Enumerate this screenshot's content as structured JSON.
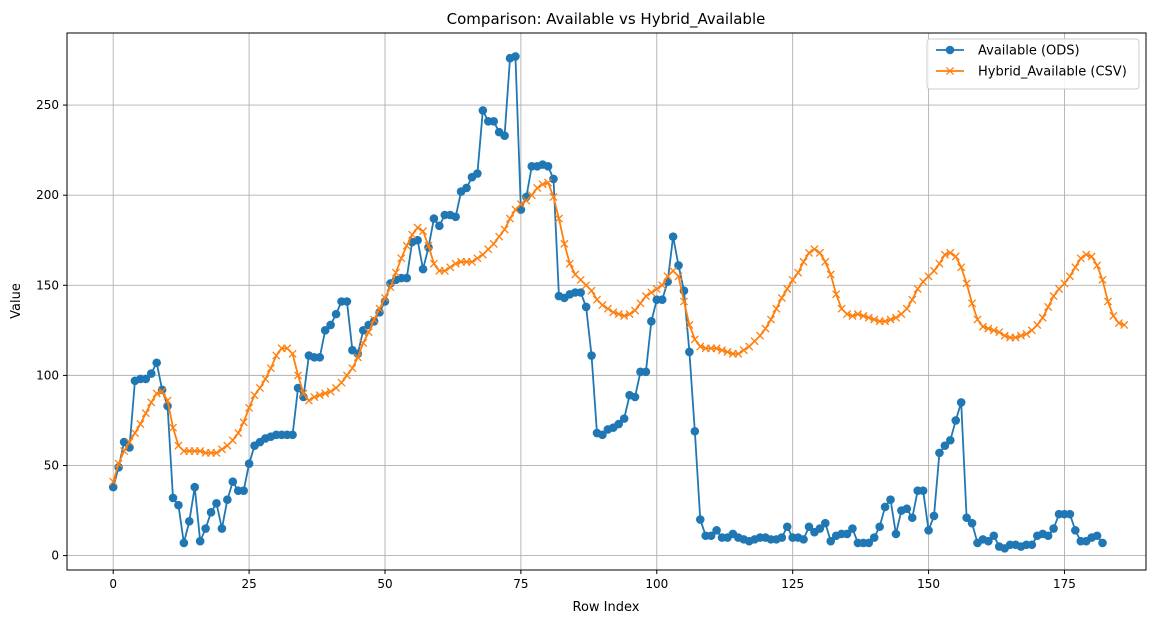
{
  "chart_data": {
    "type": "line",
    "title": "Comparison: Available vs Hybrid_Available",
    "xlabel": "Row Index",
    "ylabel": "Value",
    "xlim": [
      -8.5,
      190
    ],
    "ylim": [
      -8,
      290
    ],
    "xticks": [
      0,
      25,
      50,
      75,
      100,
      125,
      150,
      175
    ],
    "yticks": [
      0,
      50,
      100,
      150,
      200,
      250
    ],
    "grid": true,
    "legend_position": "top-right",
    "series": [
      {
        "name": "Available (ODS)",
        "color": "#1f77b4",
        "marker": "circle",
        "values": [
          38,
          49,
          63,
          60,
          97,
          98,
          98,
          101,
          107,
          92,
          83,
          32,
          28,
          7,
          19,
          38,
          8,
          15,
          24,
          29,
          15,
          31,
          41,
          36,
          36,
          51,
          61,
          63,
          65,
          66,
          67,
          67,
          67,
          67,
          93,
          88,
          111,
          110,
          110,
          125,
          128,
          134,
          141,
          141,
          114,
          112,
          125,
          128,
          130,
          135,
          141,
          151,
          153,
          154,
          154,
          174,
          175,
          159,
          171,
          187,
          183,
          189,
          189,
          188,
          202,
          204,
          210,
          212,
          247,
          241,
          241,
          235,
          233,
          276,
          277,
          192,
          199,
          216,
          216,
          217,
          216,
          209,
          144,
          143,
          145,
          146,
          146,
          138,
          111,
          68,
          67,
          70,
          71,
          73,
          76,
          89,
          88,
          102,
          102,
          130,
          142,
          142,
          152,
          177,
          161,
          147,
          113,
          69,
          20,
          11,
          11,
          14,
          10,
          10,
          12,
          10,
          9,
          8,
          9,
          10,
          10,
          9,
          9,
          10,
          16,
          10,
          10,
          9,
          16,
          13,
          15,
          18,
          8,
          11,
          12,
          12,
          15,
          7,
          7,
          7,
          10,
          16,
          27,
          31,
          12,
          25,
          26,
          21,
          36,
          36,
          14,
          22,
          57,
          61,
          64,
          75,
          85,
          21,
          18,
          7,
          9,
          8,
          11,
          5,
          4,
          6,
          6,
          5,
          6,
          6,
          11,
          12,
          11,
          15,
          23,
          23,
          23,
          14,
          8,
          8,
          10,
          11,
          7
        ]
      },
      {
        "name": "Hybrid_Available (CSV)",
        "color": "#ff7f0e",
        "marker": "x",
        "values": [
          41,
          51,
          58,
          63,
          68,
          73,
          79,
          85,
          90,
          91,
          86,
          71,
          61,
          58,
          58,
          58,
          58,
          57,
          57,
          57,
          59,
          61,
          64,
          68,
          74,
          82,
          89,
          93,
          98,
          104,
          111,
          115,
          115,
          112,
          100,
          90,
          86,
          88,
          89,
          90,
          91,
          93,
          96,
          100,
          104,
          110,
          118,
          124,
          131,
          137,
          143,
          149,
          157,
          165,
          172,
          178,
          182,
          180,
          172,
          162,
          158,
          158,
          160,
          162,
          163,
          163,
          163,
          165,
          167,
          170,
          173,
          177,
          181,
          187,
          192,
          195,
          197,
          200,
          204,
          206,
          207,
          199,
          187,
          173,
          162,
          156,
          153,
          150,
          147,
          142,
          139,
          137,
          135,
          134,
          133,
          134,
          136,
          140,
          144,
          146,
          148,
          150,
          155,
          158,
          155,
          141,
          128,
          120,
          116,
          115,
          115,
          115,
          114,
          113,
          112,
          112,
          114,
          116,
          119,
          122,
          126,
          131,
          137,
          143,
          148,
          153,
          157,
          163,
          168,
          170,
          168,
          163,
          156,
          145,
          137,
          134,
          133,
          134,
          133,
          132,
          131,
          130,
          130,
          131,
          132,
          134,
          137,
          142,
          148,
          152,
          155,
          158,
          162,
          167,
          168,
          166,
          160,
          151,
          140,
          131,
          127,
          126,
          125,
          124,
          122,
          121,
          121,
          122,
          123,
          125,
          128,
          132,
          138,
          144,
          148,
          151,
          155,
          160,
          165,
          167,
          166,
          161,
          153,
          141,
          133,
          129,
          128
        ]
      }
    ]
  }
}
